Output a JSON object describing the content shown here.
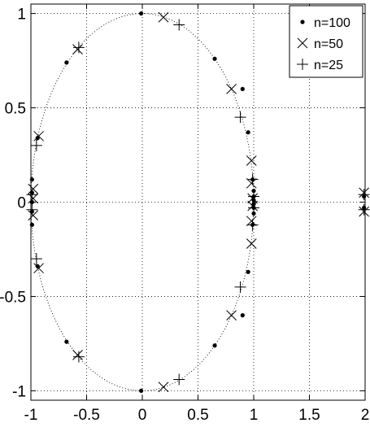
{
  "chart_data": {
    "type": "scatter",
    "title": "",
    "xlabel": "",
    "ylabel": "",
    "xlim": [
      -1,
      2
    ],
    "ylim": [
      -1.05,
      1.05
    ],
    "xticks": [
      -1,
      -0.5,
      0,
      0.5,
      1,
      1.5,
      2
    ],
    "xtick_labels": [
      "-1",
      "-0.5",
      "0",
      "0.5",
      "1",
      "1.5",
      "2"
    ],
    "yticks": [
      1,
      0.5,
      0,
      -0.5,
      -1
    ],
    "ytick_labels": [
      "1",
      "0.5",
      "0",
      "-0.5",
      "-1"
    ],
    "grid": true,
    "legend_position": "top-right",
    "reference_curve": {
      "shape": "circle",
      "center": [
        0,
        0
      ],
      "radius": 1,
      "style": "dotted"
    },
    "series": [
      {
        "name": "n=100",
        "marker": "dot",
        "points": [
          [
            -0.01,
            1.0
          ],
          [
            0.65,
            0.76
          ],
          [
            0.9,
            0.6
          ],
          [
            0.95,
            0.37
          ],
          [
            0.99,
            0.12
          ],
          [
            1.0,
            0.06
          ],
          [
            1.0,
            0.03
          ],
          [
            1.0,
            0.01
          ],
          [
            1.0,
            -0.01
          ],
          [
            1.0,
            -0.03
          ],
          [
            1.0,
            -0.06
          ],
          [
            0.99,
            -0.12
          ],
          [
            0.9,
            -0.6
          ],
          [
            0.95,
            -0.37
          ],
          [
            0.65,
            -0.76
          ],
          [
            -0.01,
            -1.0
          ],
          [
            -0.68,
            -0.74
          ],
          [
            -0.94,
            -0.34
          ],
          [
            -0.99,
            -0.12
          ],
          [
            -0.99,
            -0.05
          ],
          [
            -0.99,
            0.0
          ],
          [
            -0.99,
            0.05
          ],
          [
            -0.99,
            0.12
          ],
          [
            -0.94,
            0.34
          ],
          [
            -0.68,
            0.74
          ],
          [
            1.99,
            0.03
          ],
          [
            1.99,
            -0.03
          ]
        ]
      },
      {
        "name": "n=50",
        "marker": "x",
        "points": [
          [
            0.19,
            0.98
          ],
          [
            0.8,
            0.6
          ],
          [
            0.98,
            0.22
          ],
          [
            0.98,
            0.1
          ],
          [
            0.99,
            0.02
          ],
          [
            0.99,
            -0.02
          ],
          [
            0.98,
            -0.1
          ],
          [
            0.98,
            -0.22
          ],
          [
            0.8,
            -0.6
          ],
          [
            0.19,
            -0.98
          ],
          [
            -0.58,
            -0.81
          ],
          [
            -0.93,
            -0.35
          ],
          [
            -0.98,
            -0.07
          ],
          [
            -0.98,
            0.02
          ],
          [
            -0.98,
            0.07
          ],
          [
            -0.93,
            0.35
          ],
          [
            -0.58,
            0.81
          ],
          [
            1.99,
            0.05
          ],
          [
            1.99,
            -0.05
          ]
        ]
      },
      {
        "name": "n=25",
        "marker": "plus",
        "points": [
          [
            0.33,
            0.94
          ],
          [
            0.88,
            0.45
          ],
          [
            0.99,
            0.12
          ],
          [
            1.0,
            0.03
          ],
          [
            1.0,
            -0.03
          ],
          [
            0.99,
            -0.12
          ],
          [
            0.88,
            -0.45
          ],
          [
            0.33,
            -0.94
          ],
          [
            -0.57,
            -0.82
          ],
          [
            -0.95,
            -0.3
          ],
          [
            -0.99,
            -0.04
          ],
          [
            -0.99,
            0.04
          ],
          [
            -0.95,
            0.3
          ],
          [
            -0.57,
            0.82
          ],
          [
            1.99,
            0.04
          ],
          [
            1.99,
            -0.04
          ]
        ]
      }
    ]
  }
}
